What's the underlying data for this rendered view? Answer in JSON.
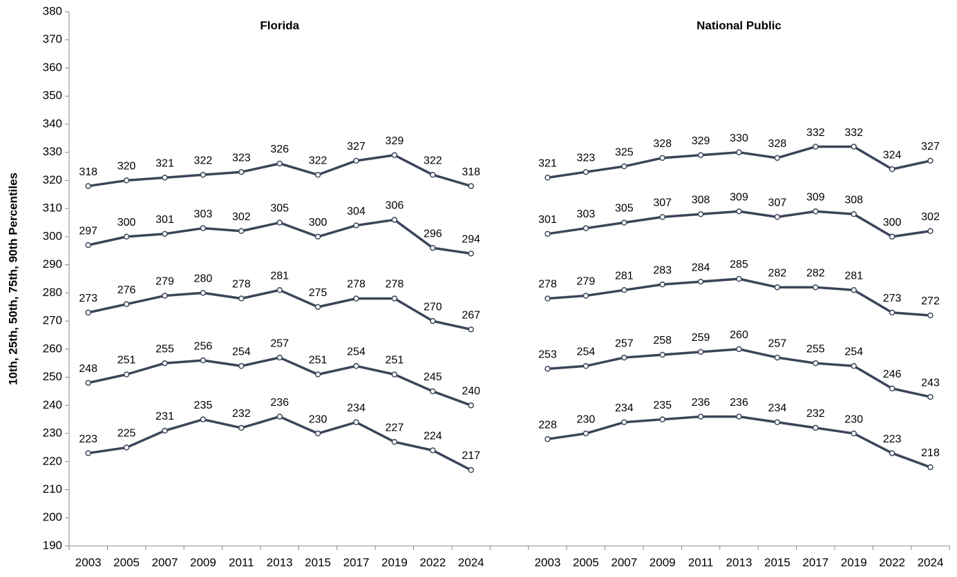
{
  "chart_data": [
    {
      "type": "line",
      "title": "Florida",
      "ylabel": "10th, 25th, 50th, 75th, 90th Percentiles",
      "categories": [
        "2003",
        "2005",
        "2007",
        "2009",
        "2011",
        "2013",
        "2015",
        "2017",
        "2019",
        "2022",
        "2024"
      ],
      "ylim": [
        190,
        380
      ],
      "yticks": [
        190,
        200,
        210,
        220,
        230,
        240,
        250,
        260,
        270,
        280,
        290,
        300,
        310,
        320,
        330,
        340,
        350,
        360,
        370,
        380
      ],
      "series": [
        {
          "color": "#3b4559",
          "values": [
            318,
            320,
            321,
            322,
            323,
            326,
            322,
            327,
            329,
            322,
            318
          ]
        },
        {
          "color": "#3b4559",
          "values": [
            297,
            300,
            301,
            303,
            302,
            305,
            300,
            304,
            306,
            296,
            294
          ]
        },
        {
          "color": "#3b4559",
          "values": [
            273,
            276,
            279,
            280,
            278,
            281,
            275,
            278,
            278,
            270,
            267
          ]
        },
        {
          "color": "#3b4559",
          "values": [
            248,
            251,
            255,
            256,
            254,
            257,
            251,
            254,
            251,
            245,
            240
          ]
        },
        {
          "color": "#3b4559",
          "values": [
            223,
            225,
            231,
            235,
            232,
            236,
            230,
            234,
            227,
            224,
            217
          ]
        }
      ]
    },
    {
      "type": "line",
      "title": "National Public",
      "categories": [
        "2003",
        "2005",
        "2007",
        "2009",
        "2011",
        "2013",
        "2015",
        "2017",
        "2019",
        "2022",
        "2024"
      ],
      "ylim": [
        190,
        380
      ],
      "series": [
        {
          "color": "#3b4559",
          "values": [
            321,
            323,
            325,
            328,
            329,
            330,
            328,
            332,
            332,
            324,
            327
          ]
        },
        {
          "color": "#3b4559",
          "values": [
            301,
            303,
            305,
            307,
            308,
            309,
            307,
            309,
            308,
            300,
            302
          ]
        },
        {
          "color": "#3b4559",
          "values": [
            278,
            279,
            281,
            283,
            284,
            285,
            282,
            282,
            281,
            273,
            272
          ]
        },
        {
          "color": "#3b4559",
          "values": [
            253,
            254,
            257,
            258,
            259,
            260,
            257,
            255,
            254,
            246,
            243
          ]
        },
        {
          "color": "#3b4559",
          "values": [
            228,
            230,
            234,
            235,
            236,
            236,
            234,
            232,
            230,
            223,
            218
          ]
        }
      ]
    }
  ]
}
